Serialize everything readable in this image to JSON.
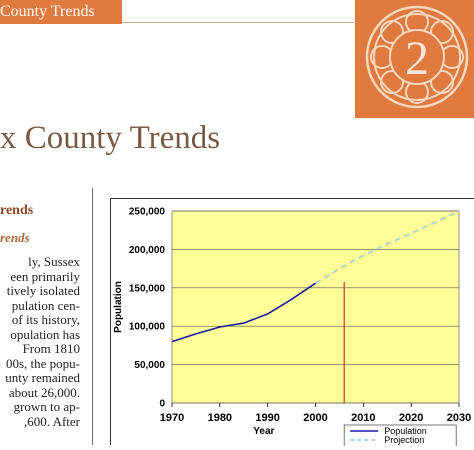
{
  "header": {
    "band_text": "County Trends",
    "chapter_number": "2"
  },
  "page": {
    "title": "x County Trends",
    "section_heading": "rends",
    "subsection_heading": "rends",
    "body_lines": [
      "ly,   Sussex",
      "een  primarily",
      "tively isolated",
      "pulation  cen-",
      "of its history,",
      "opulation  has",
      "From  1810",
      "00s, the popu-",
      "unty remained",
      "about 26,000.",
      "grown to ap-",
      ",600.    After"
    ]
  },
  "chart_data": {
    "type": "line",
    "xlabel": "Year",
    "ylabel": "Population",
    "xlim": [
      1970,
      2030
    ],
    "ylim": [
      0,
      250000
    ],
    "x_ticks": [
      "1970",
      "1980",
      "1990",
      "2000",
      "2010",
      "2020",
      "2030"
    ],
    "y_ticks": [
      "0",
      "50,000",
      "100,000",
      "150,000",
      "200,000",
      "250,000"
    ],
    "marker_year": 2006,
    "plot_background": "#ffff99",
    "series": [
      {
        "name": "Population",
        "style": "solid",
        "color": "#1a1aa8",
        "x": [
          1970,
          1975,
          1980,
          1985,
          1990,
          1995,
          2000
        ],
        "y": [
          80000,
          90000,
          99000,
          104000,
          116000,
          135000,
          156000
        ]
      },
      {
        "name": "Projection",
        "style": "dashed",
        "color": "#8ccde8",
        "x": [
          2000,
          2005,
          2010,
          2015,
          2020,
          2025,
          2030
        ],
        "y": [
          156000,
          175000,
          192000,
          207000,
          221000,
          235000,
          250000
        ]
      }
    ],
    "legend_position": "bottom-right",
    "grid": true
  }
}
